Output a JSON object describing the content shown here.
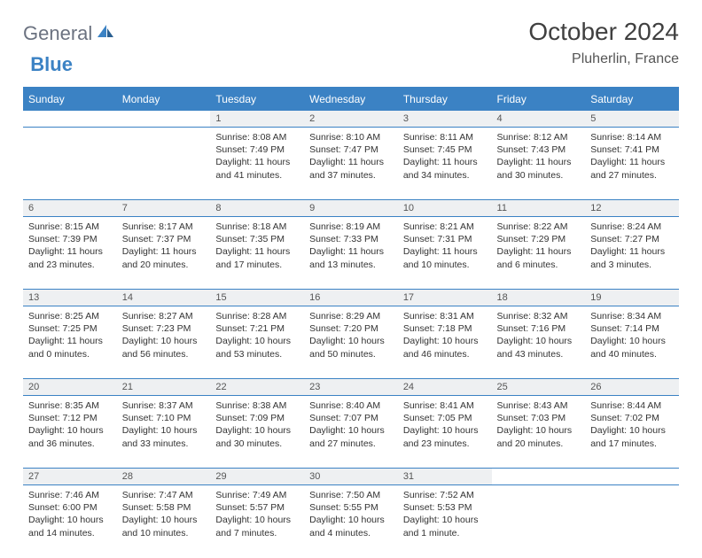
{
  "logo": {
    "general": "General",
    "blue": "Blue"
  },
  "header": {
    "title": "October 2024",
    "location": "Pluherlin, France"
  },
  "colors": {
    "header_bg": "#3b82c4",
    "header_text": "#ffffff",
    "daynum_bg": "#eef0f2",
    "border": "#3b82c4",
    "body_text": "#333333",
    "logo_gray": "#6b7280",
    "logo_blue": "#3b82c4"
  },
  "daysOfWeek": [
    "Sunday",
    "Monday",
    "Tuesday",
    "Wednesday",
    "Thursday",
    "Friday",
    "Saturday"
  ],
  "weeks": [
    {
      "nums": [
        "",
        "",
        "1",
        "2",
        "3",
        "4",
        "5"
      ],
      "cells": [
        null,
        null,
        {
          "sunrise": "8:08 AM",
          "sunset": "7:49 PM",
          "daylight": "11 hours and 41 minutes."
        },
        {
          "sunrise": "8:10 AM",
          "sunset": "7:47 PM",
          "daylight": "11 hours and 37 minutes."
        },
        {
          "sunrise": "8:11 AM",
          "sunset": "7:45 PM",
          "daylight": "11 hours and 34 minutes."
        },
        {
          "sunrise": "8:12 AM",
          "sunset": "7:43 PM",
          "daylight": "11 hours and 30 minutes."
        },
        {
          "sunrise": "8:14 AM",
          "sunset": "7:41 PM",
          "daylight": "11 hours and 27 minutes."
        }
      ]
    },
    {
      "nums": [
        "6",
        "7",
        "8",
        "9",
        "10",
        "11",
        "12"
      ],
      "cells": [
        {
          "sunrise": "8:15 AM",
          "sunset": "7:39 PM",
          "daylight": "11 hours and 23 minutes."
        },
        {
          "sunrise": "8:17 AM",
          "sunset": "7:37 PM",
          "daylight": "11 hours and 20 minutes."
        },
        {
          "sunrise": "8:18 AM",
          "sunset": "7:35 PM",
          "daylight": "11 hours and 17 minutes."
        },
        {
          "sunrise": "8:19 AM",
          "sunset": "7:33 PM",
          "daylight": "11 hours and 13 minutes."
        },
        {
          "sunrise": "8:21 AM",
          "sunset": "7:31 PM",
          "daylight": "11 hours and 10 minutes."
        },
        {
          "sunrise": "8:22 AM",
          "sunset": "7:29 PM",
          "daylight": "11 hours and 6 minutes."
        },
        {
          "sunrise": "8:24 AM",
          "sunset": "7:27 PM",
          "daylight": "11 hours and 3 minutes."
        }
      ]
    },
    {
      "nums": [
        "13",
        "14",
        "15",
        "16",
        "17",
        "18",
        "19"
      ],
      "cells": [
        {
          "sunrise": "8:25 AM",
          "sunset": "7:25 PM",
          "daylight": "11 hours and 0 minutes."
        },
        {
          "sunrise": "8:27 AM",
          "sunset": "7:23 PM",
          "daylight": "10 hours and 56 minutes."
        },
        {
          "sunrise": "8:28 AM",
          "sunset": "7:21 PM",
          "daylight": "10 hours and 53 minutes."
        },
        {
          "sunrise": "8:29 AM",
          "sunset": "7:20 PM",
          "daylight": "10 hours and 50 minutes."
        },
        {
          "sunrise": "8:31 AM",
          "sunset": "7:18 PM",
          "daylight": "10 hours and 46 minutes."
        },
        {
          "sunrise": "8:32 AM",
          "sunset": "7:16 PM",
          "daylight": "10 hours and 43 minutes."
        },
        {
          "sunrise": "8:34 AM",
          "sunset": "7:14 PM",
          "daylight": "10 hours and 40 minutes."
        }
      ]
    },
    {
      "nums": [
        "20",
        "21",
        "22",
        "23",
        "24",
        "25",
        "26"
      ],
      "cells": [
        {
          "sunrise": "8:35 AM",
          "sunset": "7:12 PM",
          "daylight": "10 hours and 36 minutes."
        },
        {
          "sunrise": "8:37 AM",
          "sunset": "7:10 PM",
          "daylight": "10 hours and 33 minutes."
        },
        {
          "sunrise": "8:38 AM",
          "sunset": "7:09 PM",
          "daylight": "10 hours and 30 minutes."
        },
        {
          "sunrise": "8:40 AM",
          "sunset": "7:07 PM",
          "daylight": "10 hours and 27 minutes."
        },
        {
          "sunrise": "8:41 AM",
          "sunset": "7:05 PM",
          "daylight": "10 hours and 23 minutes."
        },
        {
          "sunrise": "8:43 AM",
          "sunset": "7:03 PM",
          "daylight": "10 hours and 20 minutes."
        },
        {
          "sunrise": "8:44 AM",
          "sunset": "7:02 PM",
          "daylight": "10 hours and 17 minutes."
        }
      ]
    },
    {
      "nums": [
        "27",
        "28",
        "29",
        "30",
        "31",
        "",
        ""
      ],
      "cells": [
        {
          "sunrise": "7:46 AM",
          "sunset": "6:00 PM",
          "daylight": "10 hours and 14 minutes."
        },
        {
          "sunrise": "7:47 AM",
          "sunset": "5:58 PM",
          "daylight": "10 hours and 10 minutes."
        },
        {
          "sunrise": "7:49 AM",
          "sunset": "5:57 PM",
          "daylight": "10 hours and 7 minutes."
        },
        {
          "sunrise": "7:50 AM",
          "sunset": "5:55 PM",
          "daylight": "10 hours and 4 minutes."
        },
        {
          "sunrise": "7:52 AM",
          "sunset": "5:53 PM",
          "daylight": "10 hours and 1 minute."
        },
        null,
        null
      ]
    }
  ],
  "labels": {
    "sunrise": "Sunrise:",
    "sunset": "Sunset:",
    "daylight": "Daylight:"
  }
}
